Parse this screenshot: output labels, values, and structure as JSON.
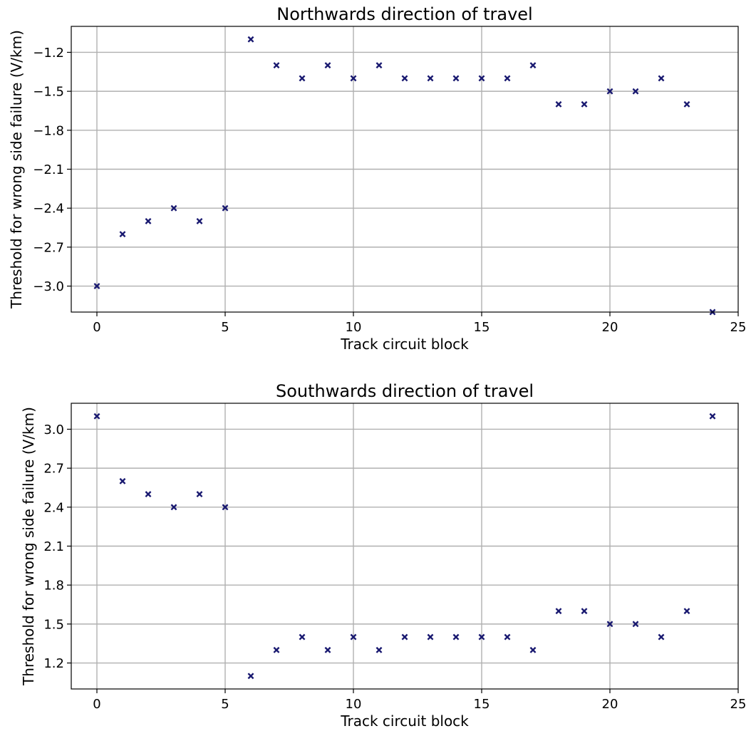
{
  "chart_data": [
    {
      "type": "scatter",
      "title": "Northwards direction of travel",
      "xlabel": "Track circuit block",
      "ylabel": "Threshold for wrong side failure (V/km)",
      "xlim": [
        -1,
        25
      ],
      "ylim": [
        -3.2,
        -1.0
      ],
      "xticks": [
        0,
        5,
        10,
        15,
        20,
        25
      ],
      "yticks": [
        -3.0,
        -2.7,
        -2.4,
        -2.1,
        -1.8,
        -1.5,
        -1.2
      ],
      "xtick_labels": [
        "0",
        "5",
        "10",
        "15",
        "20",
        "25"
      ],
      "ytick_labels": [
        "−3.0",
        "−2.7",
        "−2.4",
        "−2.1",
        "−1.8",
        "−1.5",
        "−1.2"
      ],
      "grid": true,
      "marker": "x",
      "color": "#191970",
      "x": [
        0,
        1,
        2,
        3,
        4,
        5,
        6,
        7,
        8,
        9,
        10,
        11,
        12,
        13,
        14,
        15,
        16,
        17,
        18,
        19,
        20,
        21,
        22,
        23,
        24
      ],
      "y": [
        -3.0,
        -2.6,
        -2.5,
        -2.4,
        -2.5,
        -2.4,
        -1.1,
        -1.3,
        -1.4,
        -1.3,
        -1.4,
        -1.3,
        -1.4,
        -1.4,
        -1.4,
        -1.4,
        -1.4,
        -1.3,
        -1.6,
        -1.6,
        -1.5,
        -1.5,
        -1.4,
        -1.6,
        -3.2
      ]
    },
    {
      "type": "scatter",
      "title": "Southwards direction of travel",
      "xlabel": "Track circuit block",
      "ylabel": "Threshold for wrong side failure (V/km)",
      "xlim": [
        -1,
        25
      ],
      "ylim": [
        1.0,
        3.2
      ],
      "xticks": [
        0,
        5,
        10,
        15,
        20,
        25
      ],
      "yticks": [
        1.2,
        1.5,
        1.8,
        2.1,
        2.4,
        2.7,
        3.0
      ],
      "xtick_labels": [
        "0",
        "5",
        "10",
        "15",
        "20",
        "25"
      ],
      "ytick_labels": [
        "1.2",
        "1.5",
        "1.8",
        "2.1",
        "2.4",
        "2.7",
        "3.0"
      ],
      "grid": true,
      "marker": "x",
      "color": "#191970",
      "x": [
        0,
        1,
        2,
        3,
        4,
        5,
        6,
        7,
        8,
        9,
        10,
        11,
        12,
        13,
        14,
        15,
        16,
        17,
        18,
        19,
        20,
        21,
        22,
        23,
        24
      ],
      "y": [
        3.1,
        2.6,
        2.5,
        2.4,
        2.5,
        2.4,
        1.1,
        1.3,
        1.4,
        1.3,
        1.4,
        1.3,
        1.4,
        1.4,
        1.4,
        1.4,
        1.4,
        1.3,
        1.6,
        1.6,
        1.5,
        1.5,
        1.4,
        1.6,
        3.1
      ]
    }
  ]
}
